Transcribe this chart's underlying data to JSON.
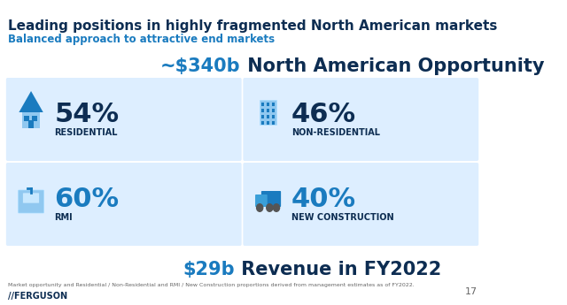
{
  "title": "Leading positions in highly fragmented North American markets",
  "subtitle": "Balanced approach to attractive end markets",
  "center_title_highlight": "~$340b",
  "center_title_rest": " North American Opportunity",
  "bottom_title_highlight": "$29b",
  "bottom_title_rest": " Revenue in FY2022",
  "cards": [
    {
      "pct": "54%",
      "label": "RESIDENTIAL",
      "row": 0,
      "col": 0
    },
    {
      "pct": "46%",
      "label": "NON-RESIDENTIAL",
      "row": 0,
      "col": 1
    },
    {
      "pct": "60%",
      "label": "RMI",
      "row": 1,
      "col": 0
    },
    {
      "pct": "40%",
      "label": "NEW CONSTRUCTION",
      "row": 1,
      "col": 1
    }
  ],
  "footnote": "Market opportunity and Residential / Non-Residential and RMI / New Construction proportions derived from management estimates as of FY2022.",
  "page_number": "17",
  "bg_color": "#ffffff",
  "card_bg_color": "#ddeeff",
  "title_color": "#0d2d52",
  "subtitle_color": "#1a7bbf",
  "highlight_color": "#1a7bbf",
  "pct_color_dark": "#0d2d52",
  "pct_color_light": "#1a7bbf",
  "label_color": "#0d2d52",
  "center_title_color": "#0d2d52",
  "footnote_color": "#666666",
  "card_rows": 2,
  "card_cols": 2
}
